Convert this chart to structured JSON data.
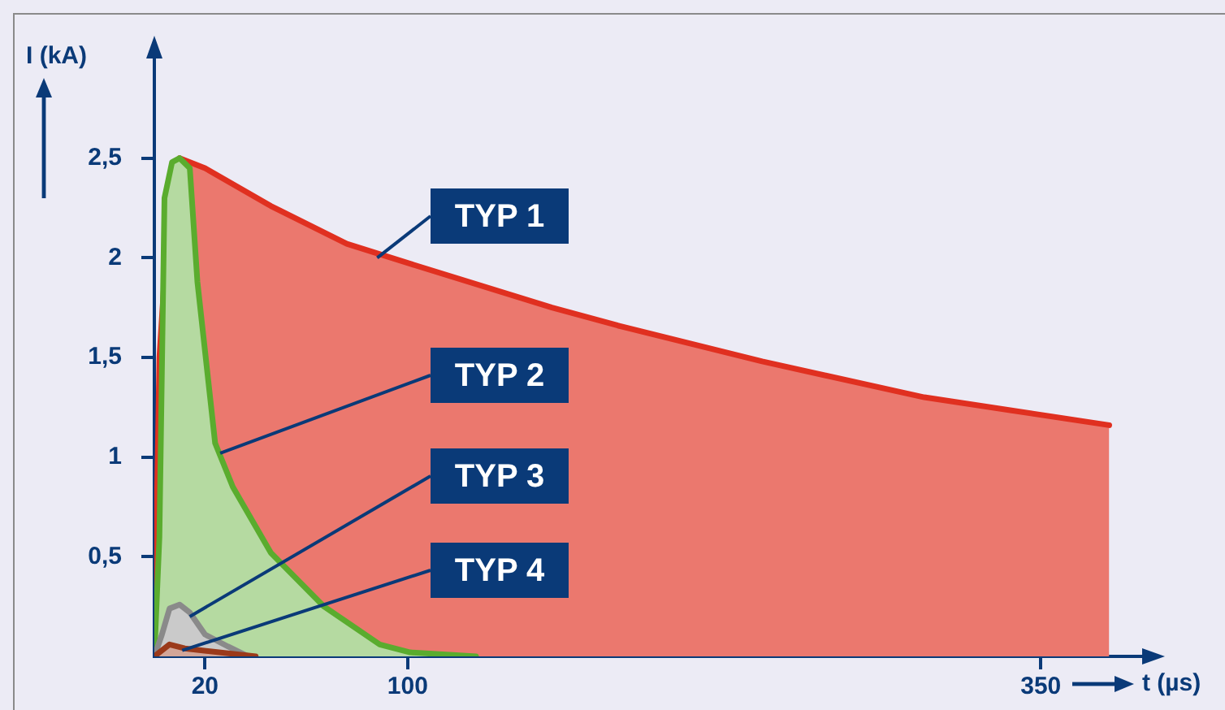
{
  "chart_data": {
    "type": "area",
    "xlabel": "t (µs)",
    "ylabel": "I (kA)",
    "xlim": [
      0,
      390
    ],
    "xticks": [
      20,
      100,
      350
    ],
    "ylim": [
      0,
      3
    ],
    "yticks": [
      {
        "value": 0.5,
        "label": "0,5"
      },
      {
        "value": 1,
        "label": "1"
      },
      {
        "value": 1.5,
        "label": "1,5"
      },
      {
        "value": 2,
        "label": "2"
      },
      {
        "value": 2.5,
        "label": "2,5"
      }
    ],
    "series": [
      {
        "color": "#e03020",
        "x": [
          0,
          2,
          6,
          10,
          20,
          46,
          76,
          101,
          157,
          183,
          240,
          304,
          377
        ],
        "values": [
          0,
          1.5,
          2.3,
          2.5,
          2.45,
          2.26,
          2.07,
          1.97,
          1.75,
          1.66,
          1.48,
          1.3,
          1.16
        ]
      },
      {
        "color": "#5aac2e",
        "x": [
          0,
          2,
          4,
          7,
          10,
          14,
          17,
          24,
          31,
          46,
          67,
          89,
          101,
          127
        ],
        "values": [
          0,
          0.6,
          2.3,
          2.48,
          2.5,
          2.45,
          1.88,
          1.07,
          0.85,
          0.52,
          0.25,
          0.06,
          0.02,
          0
        ]
      },
      {
        "color": "#8a8a8a",
        "x": [
          0,
          3,
          6,
          10,
          14,
          20,
          29,
          37
        ],
        "values": [
          0,
          0.11,
          0.24,
          0.26,
          0.22,
          0.11,
          0.05,
          0
        ]
      },
      {
        "color": "#9b3a1a",
        "x": [
          0,
          6,
          12,
          40
        ],
        "values": [
          0,
          0.06,
          0.04,
          0
        ]
      }
    ],
    "annotations": [
      {
        "text": "TYP 1",
        "x": 88,
        "y": 2.0
      },
      {
        "text": "TYP 2",
        "x": 26,
        "y": 1.02
      },
      {
        "text": "TYP 3",
        "x": 14,
        "y": 0.2
      },
      {
        "text": "TYP 4",
        "x": 11,
        "y": 0.03
      }
    ],
    "legend": false,
    "grid": false,
    "marker": "none",
    "line_style": "solid"
  }
}
